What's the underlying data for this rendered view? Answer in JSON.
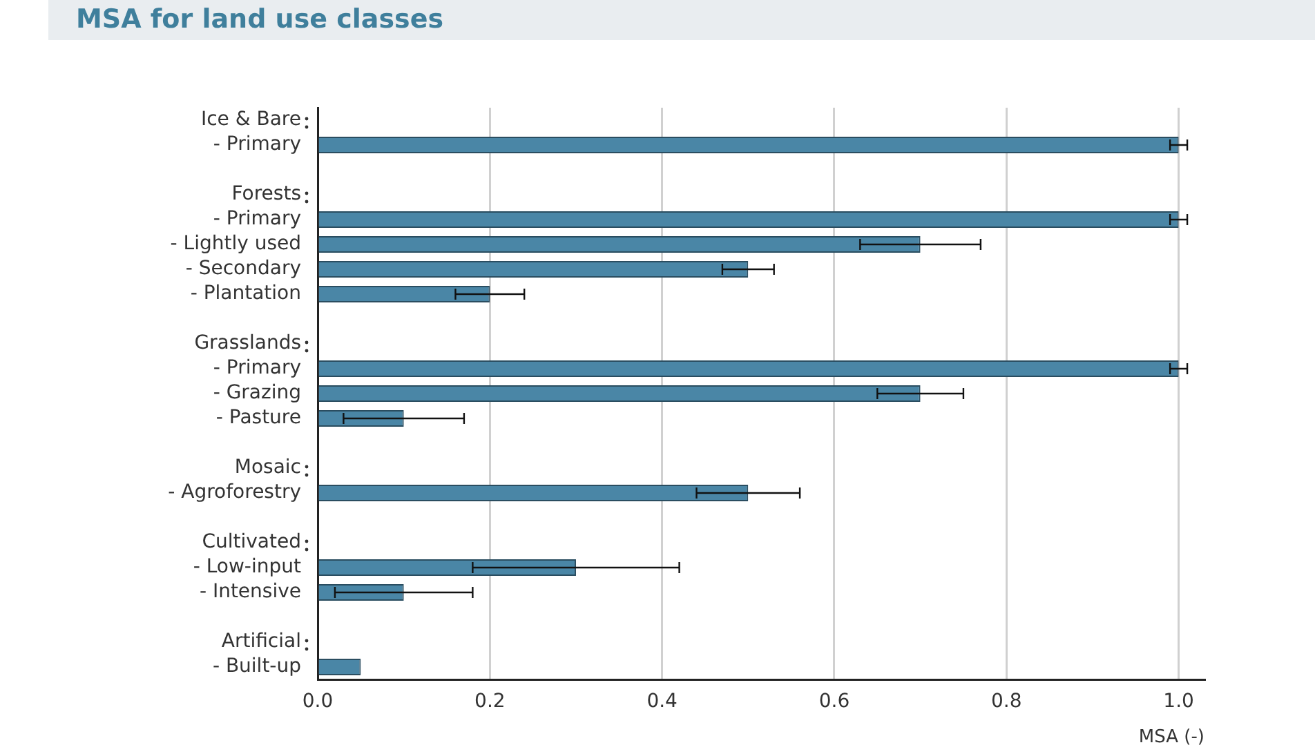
{
  "chart_data": {
    "type": "bar",
    "orientation": "horizontal",
    "title": "MSA for land use classes",
    "xlabel": "MSA (-)",
    "categories": [
      "Ice & Bare",
      "- Primary",
      null,
      "Forests",
      "- Primary",
      "- Lightly used",
      "- Secondary",
      "- Plantation",
      null,
      "Grasslands",
      "- Primary",
      "- Grazing",
      "- Pasture",
      null,
      "Mosaic",
      "- Agroforestry",
      null,
      "Cultivated",
      "- Low-input",
      "- Intensive",
      null,
      "Artificial",
      "- Built-up"
    ],
    "values": [
      null,
      1.0,
      null,
      null,
      1.0,
      0.7,
      0.5,
      0.2,
      null,
      null,
      1.0,
      0.7,
      0.1,
      null,
      null,
      0.5,
      null,
      null,
      0.3,
      0.1,
      null,
      null,
      0.05
    ],
    "errors": [
      null,
      [
        0.99,
        1.01
      ],
      null,
      null,
      [
        0.99,
        1.01
      ],
      [
        0.63,
        0.77
      ],
      [
        0.47,
        0.53
      ],
      [
        0.16,
        0.24
      ],
      null,
      null,
      [
        0.99,
        1.01
      ],
      [
        0.65,
        0.75
      ],
      [
        0.03,
        0.17
      ],
      null,
      null,
      [
        0.44,
        0.56
      ],
      null,
      null,
      [
        0.18,
        0.42
      ],
      [
        0.02,
        0.18
      ],
      null,
      null,
      null
    ],
    "color": "#4a86a6",
    "xlim": [
      0,
      1.03
    ],
    "xticks": [
      {
        "value": 0,
        "label": "0.0"
      },
      0.2,
      0.4,
      0.6,
      0.8,
      {
        "value": 1,
        "label": "1.0"
      }
    ],
    "grid": "x"
  }
}
